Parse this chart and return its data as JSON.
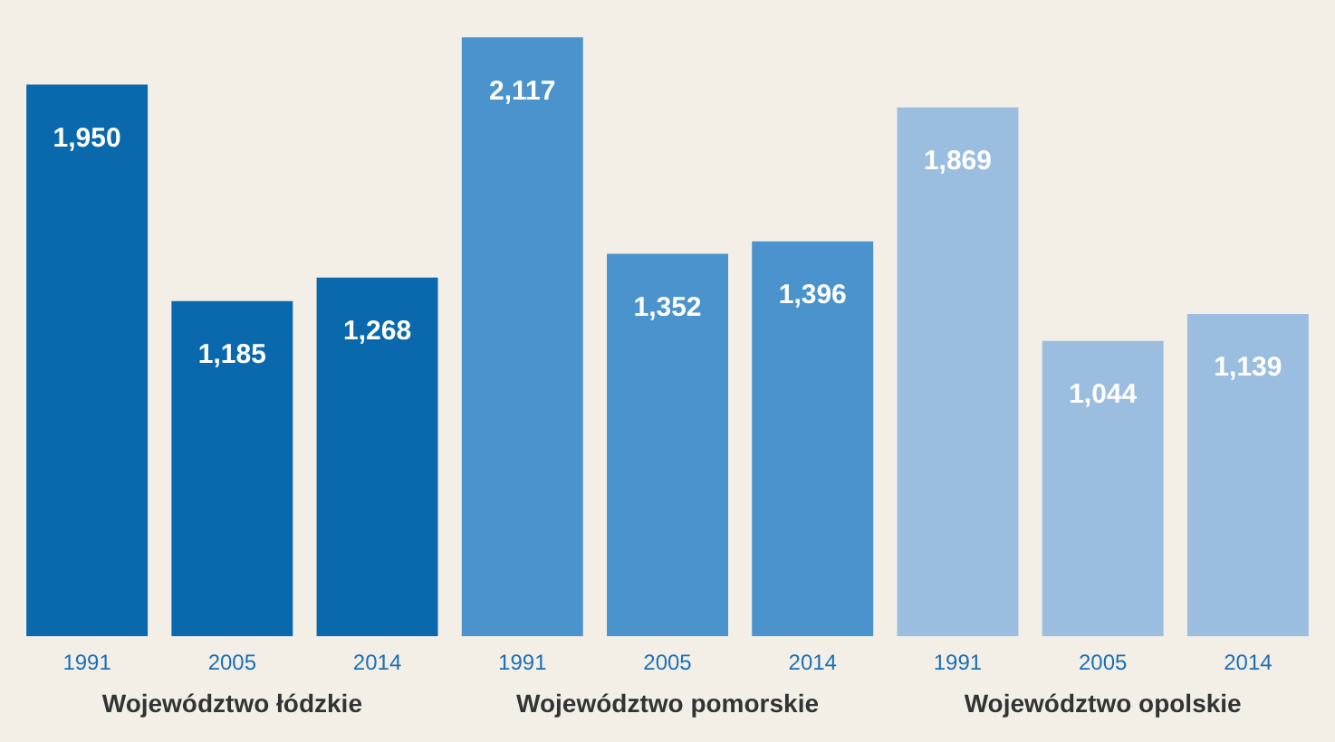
{
  "chart_data": {
    "type": "bar",
    "categories": [
      "1991",
      "2005",
      "2014",
      "1991",
      "2005",
      "2014",
      "1991",
      "2005",
      "2014"
    ],
    "series": [
      {
        "name": "Województwo łódzkie",
        "color": "#0a68ad",
        "values": [
          1950,
          1185,
          1268,
          null,
          null,
          null,
          null,
          null,
          null
        ],
        "value_labels": [
          "1,950",
          "1,185",
          "1,268",
          null,
          null,
          null,
          null,
          null,
          null
        ]
      },
      {
        "name": "Województwo pomorskie",
        "color": "#4a93cc",
        "values": [
          null,
          null,
          null,
          2117,
          1352,
          1396,
          null,
          null,
          null
        ],
        "value_labels": [
          null,
          null,
          null,
          "2,117",
          "1,352",
          "1,396",
          null,
          null,
          null
        ]
      },
      {
        "name": "Województwo opolskie",
        "color": "#9bbde0",
        "values": [
          null,
          null,
          null,
          null,
          null,
          null,
          1869,
          1044,
          1139
        ],
        "value_labels": [
          null,
          null,
          null,
          null,
          null,
          null,
          "1,869",
          "1,044",
          "1,139"
        ]
      }
    ],
    "grid": false,
    "legend": false,
    "tick_labels": "x"
  }
}
